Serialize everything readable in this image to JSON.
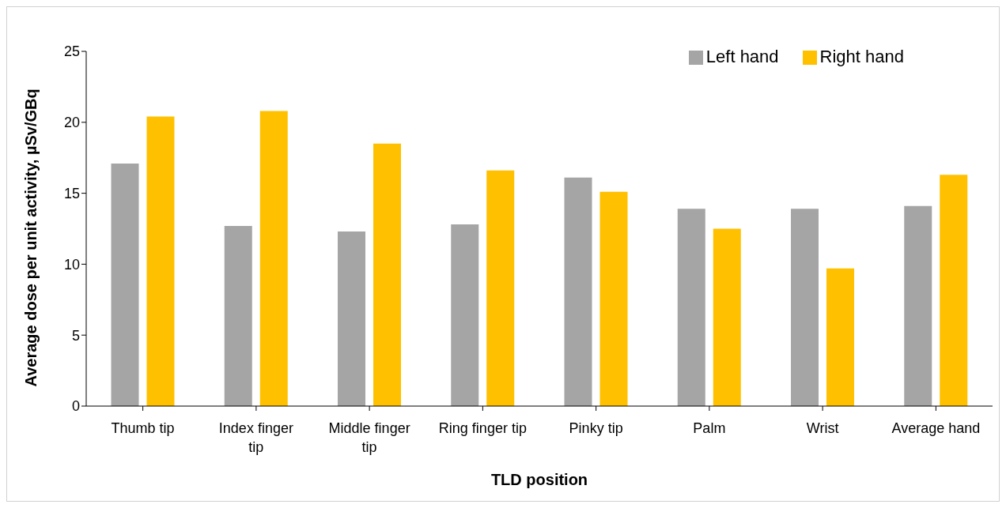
{
  "chart_data": {
    "type": "bar",
    "xlabel": "TLD position",
    "ylabel": "Average dose per unit activity, µSv/GBq",
    "categories": [
      "Thumb tip",
      "Index finger tip",
      "Middle finger tip",
      "Ring finger tip",
      "Pinky tip",
      "Palm",
      "Wrist",
      "Average hand"
    ],
    "series": [
      {
        "name": "Left hand",
        "color": "#a5a5a5",
        "values": [
          17.1,
          12.7,
          12.3,
          12.8,
          16.1,
          13.9,
          13.9,
          14.1
        ]
      },
      {
        "name": "Right hand",
        "color": "#ffc000",
        "values": [
          20.4,
          20.8,
          18.5,
          16.6,
          15.1,
          12.5,
          9.7,
          16.3
        ]
      }
    ],
    "ylim": [
      0,
      25
    ],
    "yticks": [
      0,
      5,
      10,
      15,
      20,
      25
    ],
    "grid": false,
    "legend": "top right"
  }
}
